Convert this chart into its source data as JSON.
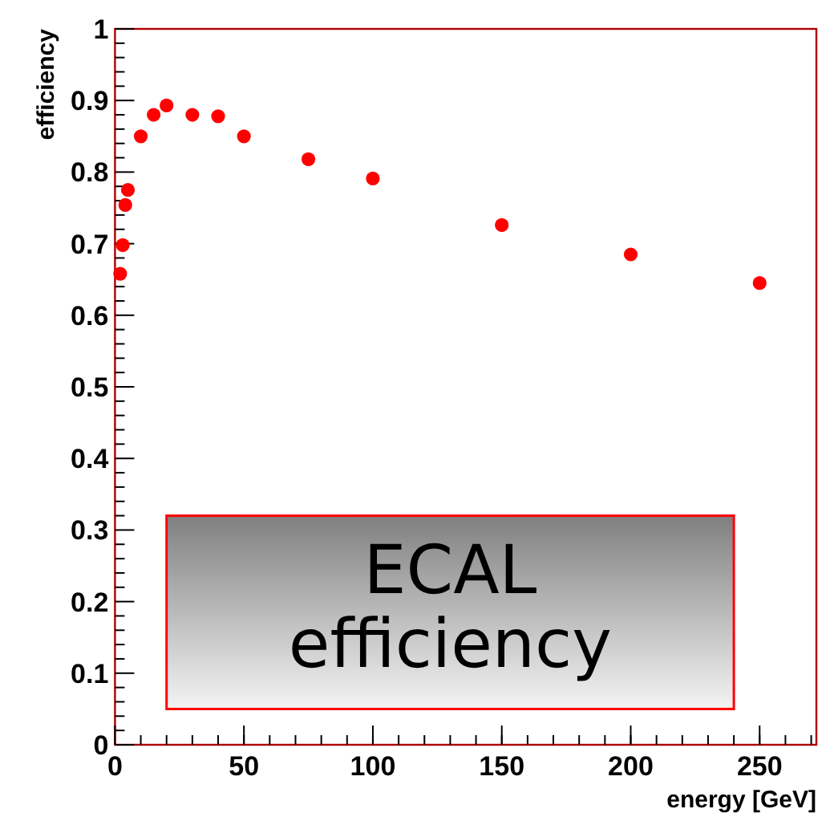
{
  "chart_data": {
    "type": "scatter",
    "xlabel": "energy [GeV]",
    "ylabel": "efficiency",
    "annotations": [
      "ECAL efficiency"
    ],
    "x": [
      2,
      3,
      4,
      5,
      10,
      15,
      20,
      30,
      40,
      50,
      75,
      100,
      150,
      200,
      250
    ],
    "series": [
      {
        "color": "#ff0000",
        "values": [
          0.658,
          0.698,
          0.754,
          0.775,
          0.85,
          0.88,
          0.893,
          0.88,
          0.878,
          0.85,
          0.818,
          0.791,
          0.726,
          0.685,
          0.645
        ]
      }
    ],
    "marker": "circle",
    "xlim": [
      0,
      272
    ],
    "ylim": [
      0,
      1
    ],
    "xticks": [
      0,
      50,
      100,
      150,
      200,
      250
    ],
    "yticks": [
      0,
      0.1,
      0.2,
      0.3,
      0.4,
      0.5,
      0.6,
      0.7,
      0.8,
      0.9,
      1
    ]
  }
}
